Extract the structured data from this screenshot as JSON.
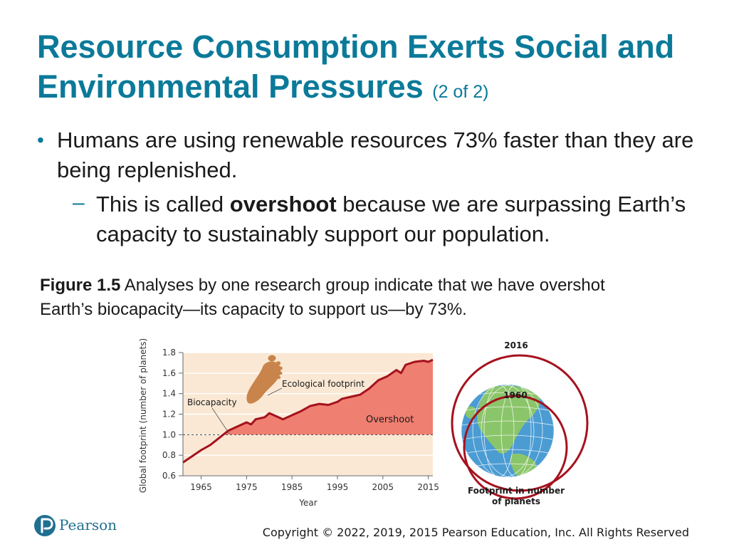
{
  "slide": {
    "title": "Resource Consumption Exerts Social and Environmental Pressures",
    "title_suffix": "(2 of 2)",
    "bullet_1": "Humans are using renewable resources 73% faster than they are being replenished.",
    "sub_bullet_prefix": "This is called ",
    "sub_bullet_bold": "overshoot",
    "sub_bullet_suffix": " because we are surpassing Earth’s capacity to sustainably support our population.",
    "caption_label": "Figure 1.5",
    "caption_text": " Analyses by one research group indicate that we have overshot Earth’s biocapacity—its capacity to support us—by 73%.",
    "copyright": "Copyright © 2022, 2019, 2015 Pearson Education, Inc. All Rights Reserved",
    "logo_text": "Pearson"
  },
  "colors": {
    "title": "#0b7a99",
    "plot_bg": "#fae8d4",
    "overshoot_fill": "#ef7f70",
    "footprint_line": "#a5121e",
    "footprint_icon": "#c8844a",
    "globe_ocean": "#4b9cd3",
    "globe_land": "#8bc56a",
    "logo": "#1f6f91"
  },
  "chart_data": [
    {
      "type": "area",
      "title": "",
      "xlabel": "Year",
      "ylabel": "Global footprint (number of planets)",
      "xlim": [
        1961,
        2016
      ],
      "ylim": [
        0.6,
        1.8
      ],
      "x_ticks": [
        1965,
        1975,
        1985,
        1995,
        2005,
        2015
      ],
      "y_ticks": [
        "0.6",
        "0.8",
        "1.0",
        "1.2",
        "1.4",
        "1.6",
        "1.8"
      ],
      "biocapacity": 1.0,
      "x": [
        1961,
        1963,
        1965,
        1967,
        1969,
        1971,
        1973,
        1975,
        1976,
        1977,
        1979,
        1980,
        1982,
        1983,
        1985,
        1987,
        1989,
        1991,
        1993,
        1995,
        1996,
        1998,
        2000,
        2002,
        2004,
        2006,
        2008,
        2009,
        2010,
        2012,
        2014,
        2015,
        2016
      ],
      "y": [
        0.73,
        0.79,
        0.85,
        0.9,
        0.97,
        1.04,
        1.08,
        1.12,
        1.1,
        1.15,
        1.17,
        1.21,
        1.17,
        1.15,
        1.19,
        1.23,
        1.28,
        1.3,
        1.29,
        1.32,
        1.35,
        1.37,
        1.39,
        1.45,
        1.53,
        1.57,
        1.63,
        1.6,
        1.68,
        1.71,
        1.72,
        1.71,
        1.73
      ],
      "annotations": [
        "Ecological footprint",
        "Biocapacity",
        "Overshoot"
      ]
    },
    {
      "type": "diagram",
      "labels": [
        "2016",
        "1960"
      ],
      "caption": [
        "Footprint in number",
        "of planets"
      ]
    }
  ]
}
